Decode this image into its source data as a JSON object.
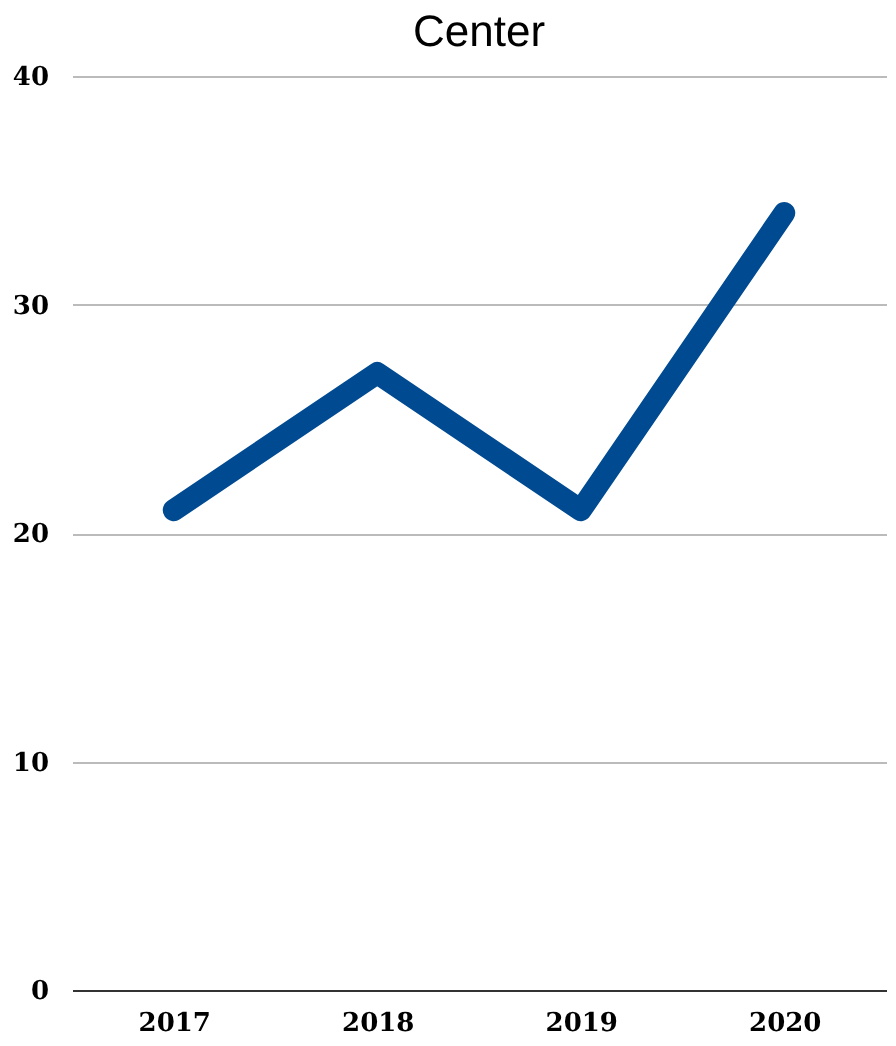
{
  "chart_data": {
    "type": "line",
    "title": "Center",
    "categories": [
      "2017",
      "2018",
      "2019",
      "2020"
    ],
    "series": [
      {
        "color": "#004a91",
        "values": [
          21,
          27,
          21,
          34
        ]
      }
    ],
    "ylim": [
      0,
      40
    ],
    "yticks": [
      0,
      10,
      20,
      30,
      40
    ],
    "grid": "y",
    "legend": false,
    "line_style": "solid"
  }
}
